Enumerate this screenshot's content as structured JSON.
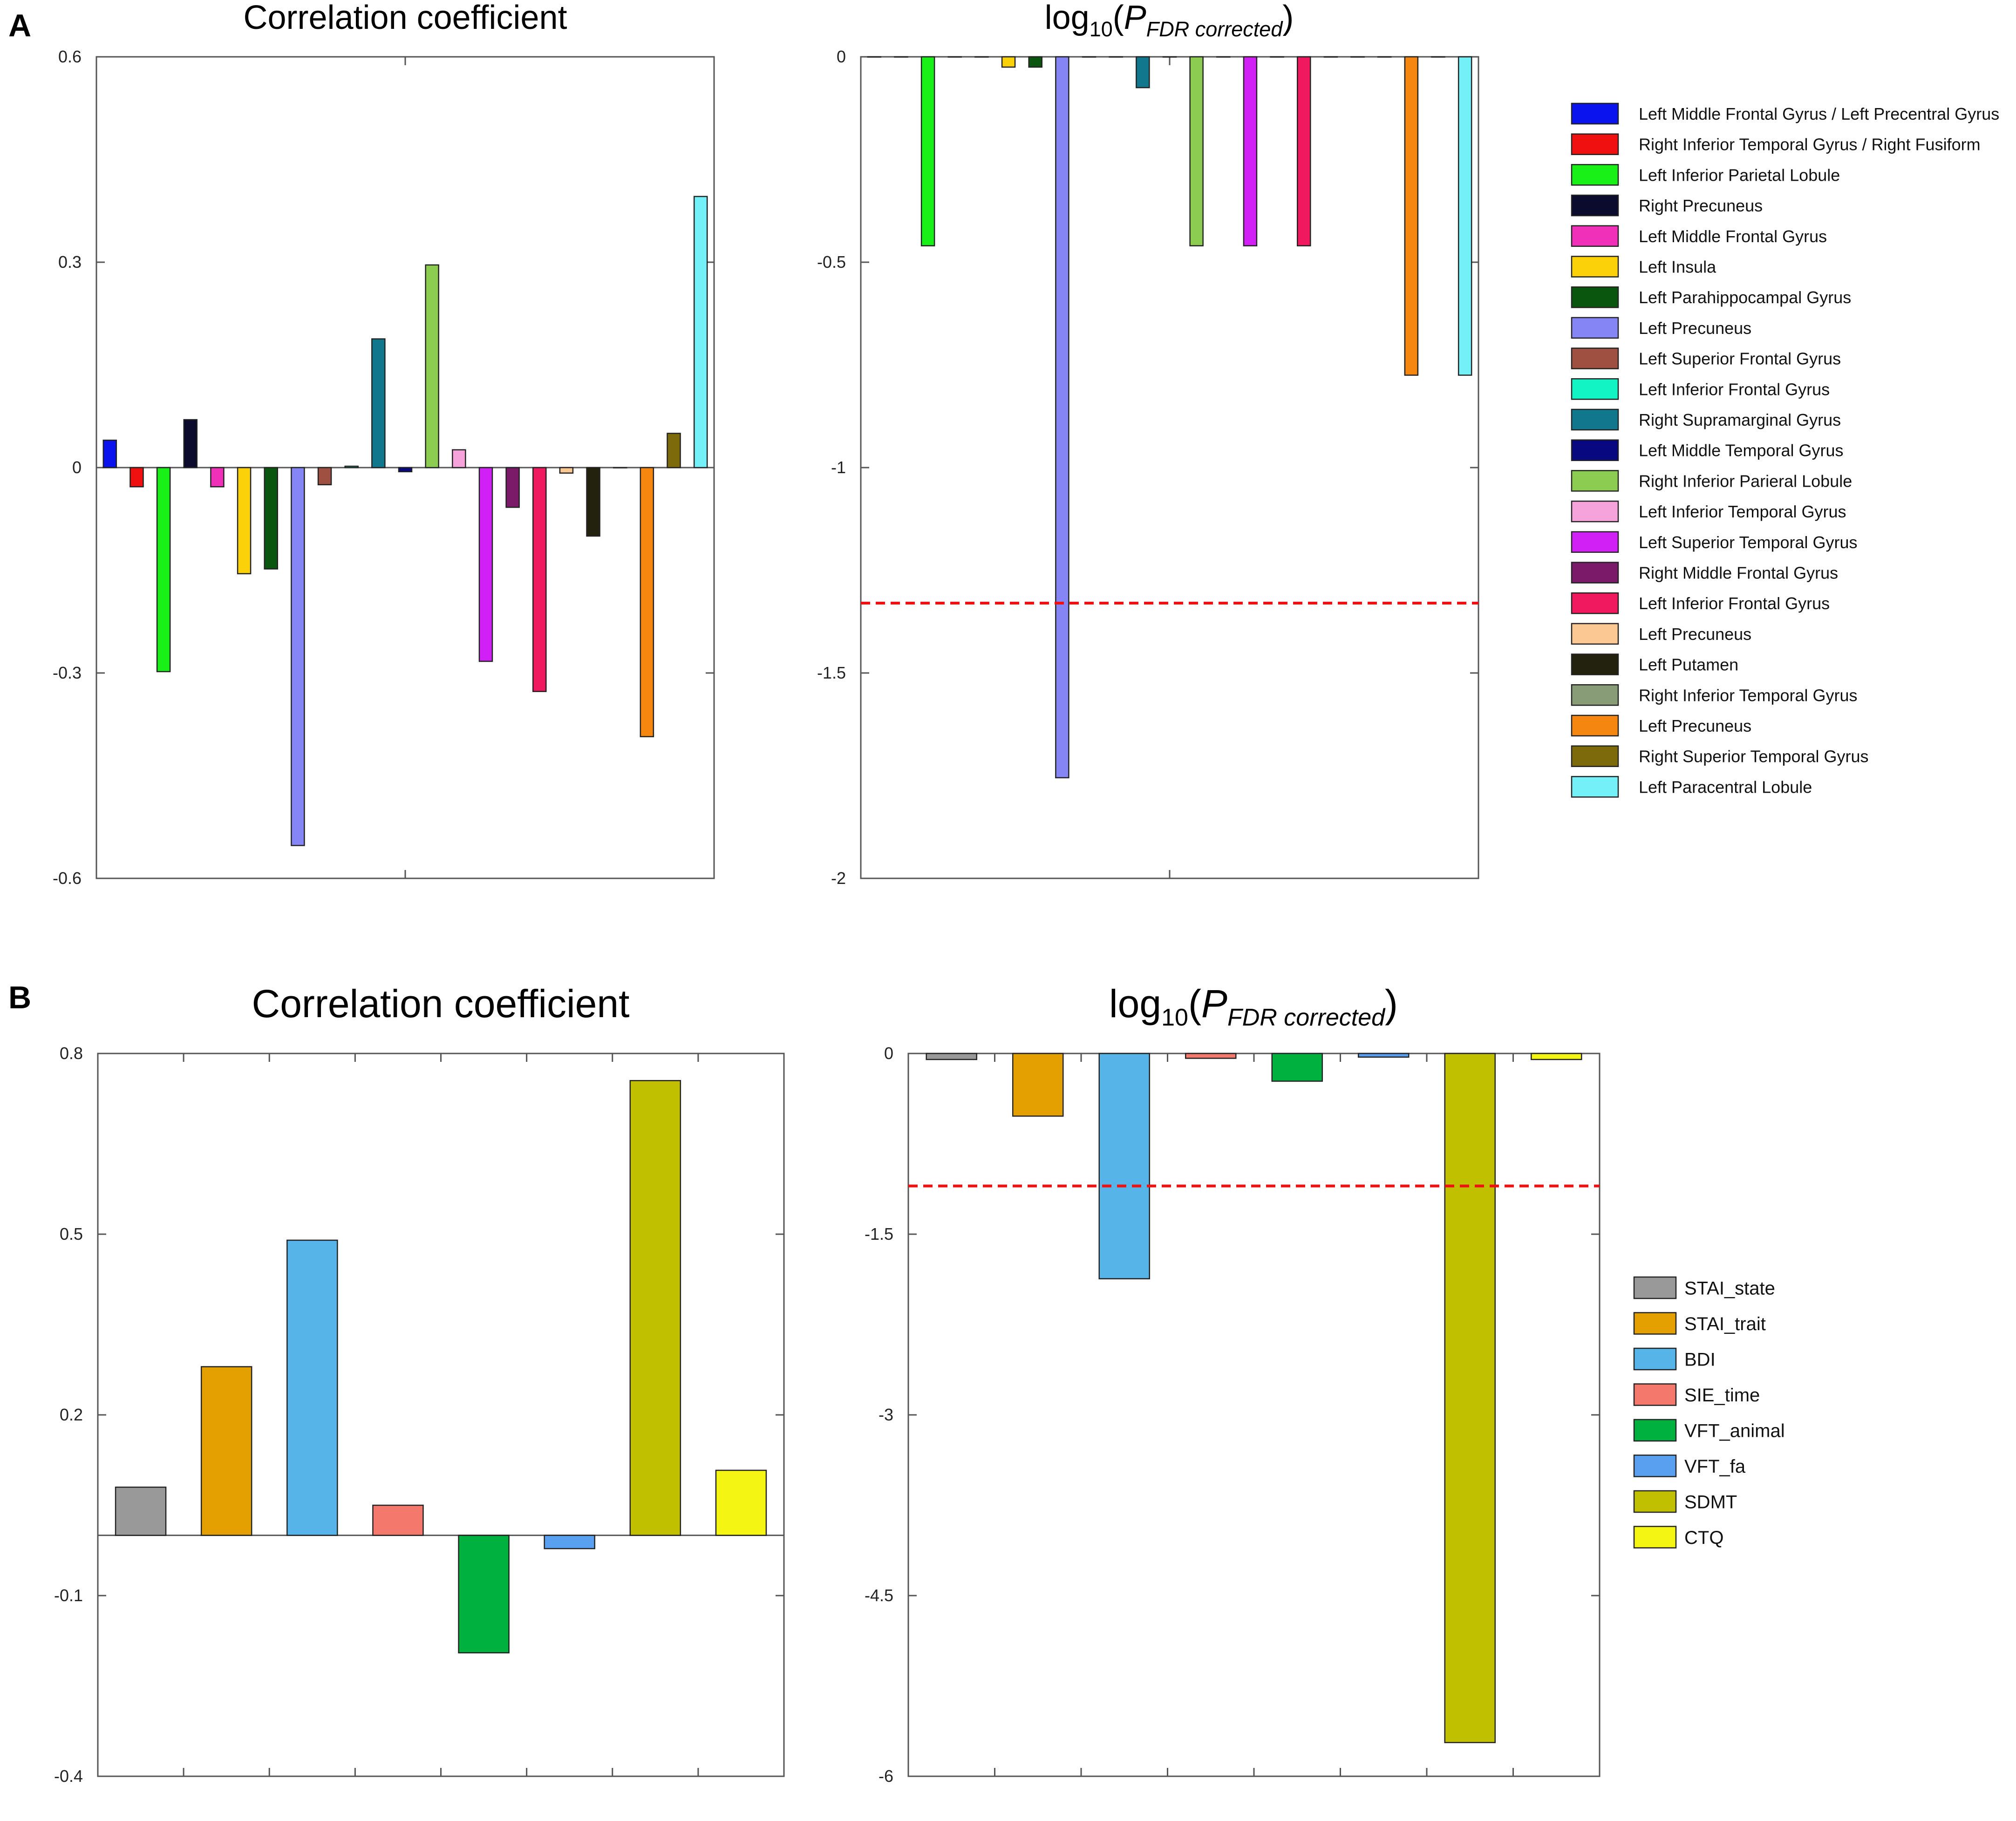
{
  "panels": {
    "a": {
      "label": "A"
    },
    "b": {
      "label": "B"
    }
  },
  "colors": {
    "axis": "#555555",
    "threshold": "#ee1111",
    "bar_stroke": "#222222"
  },
  "chart_data": [
    {
      "id": "a-corr",
      "panel": "A",
      "type": "bar",
      "title": "Correlation coefficient",
      "xlabel": "",
      "ylabel": "",
      "ylim": [
        -0.6,
        0.6
      ],
      "yticks": [
        -0.6,
        -0.3,
        0,
        0.3,
        0.6
      ],
      "ytick_labels": [
        "-0.6",
        "-0.3",
        "0",
        "0.3",
        "0.6"
      ],
      "grid": false,
      "baseline": 0,
      "categories": [
        "Left Middle Frontal Gyrus / Left Precentral Gyrus",
        "Right Inferior Temporal Gyrus / Right Fusiform",
        "Left Inferior Parietal Lobule",
        "Right Precuneus",
        "Left Middle Frontal Gyrus",
        "Left Insula",
        "Left Parahippocampal Gyrus",
        "Left Precuneus",
        "Left Superior Frontal Gyrus",
        "Left Inferior Frontal Gyrus",
        "Right Supramarginal Gyrus",
        "Left Middle Temporal Gyrus",
        "Right Inferior Parieral Lobule",
        "Left Inferior Temporal Gyrus",
        "Left Superior Temporal Gyrus",
        "Right Middle Frontal Gyrus",
        "Left Inferior Frontal Gyrus",
        "Left Precuneus",
        "Left Putamen",
        "Right Inferior Temporal Gyrus",
        "Left Precuneus",
        "Right Superior Temporal Gyrus",
        "Left Paracentral Lobule"
      ],
      "colors": [
        "#0a12ee",
        "#f01010",
        "#18f018",
        "#0b0b2e",
        "#f030b8",
        "#fbd10a",
        "#0b560e",
        "#8585f5",
        "#a05040",
        "#12f4c4",
        "#11778c",
        "#080880",
        "#8ccc50",
        "#f5a3da",
        "#d020f5",
        "#7a1a68",
        "#f0185e",
        "#fbc792",
        "#22220e",
        "#889c78",
        "#f5860f",
        "#7d6a0b",
        "#74f0f8"
      ],
      "values": [
        0.04,
        -0.028,
        -0.298,
        0.07,
        -0.028,
        -0.155,
        -0.148,
        -0.552,
        -0.025,
        0.002,
        0.188,
        -0.006,
        0.296,
        0.026,
        -0.283,
        -0.058,
        -0.327,
        -0.008,
        -0.1,
        0.0,
        -0.393,
        0.05,
        0.396
      ],
      "ticks_x": 1,
      "legend_position": "right"
    },
    {
      "id": "a-logp",
      "panel": "A",
      "type": "bar",
      "title_base": "log",
      "title_sub": "10",
      "title_p": "P",
      "title_psub": "FDR corrected",
      "xlabel": "",
      "ylabel": "",
      "ylim": [
        -2,
        0
      ],
      "yticks": [
        -2,
        -1.5,
        -1,
        -0.5,
        0
      ],
      "ytick_labels": [
        "-2",
        "-1.5",
        "-1",
        "-0.5",
        "0"
      ],
      "grid": false,
      "baseline": 0,
      "threshold": -1.33,
      "categories": [
        "Left Middle Frontal Gyrus / Left Precentral Gyrus",
        "Right Inferior Temporal Gyrus / Right Fusiform",
        "Left Inferior Parietal Lobule",
        "Right Precuneus",
        "Left Middle Frontal Gyrus",
        "Left Insula",
        "Left Parahippocampal Gyrus",
        "Left Precuneus",
        "Left Superior Frontal Gyrus",
        "Left Inferior Frontal Gyrus",
        "Right Supramarginal Gyrus",
        "Left Middle Temporal Gyrus",
        "Right Inferior Parieral Lobule",
        "Left Inferior Temporal Gyrus",
        "Left Superior Temporal Gyrus",
        "Right Middle Frontal Gyrus",
        "Left Inferior Frontal Gyrus",
        "Left Precuneus",
        "Left Putamen",
        "Right Inferior Temporal Gyrus",
        "Left Precuneus",
        "Right Superior Temporal Gyrus",
        "Left Paracentral Lobule"
      ],
      "colors": [
        "#0a12ee",
        "#f01010",
        "#18f018",
        "#0b0b2e",
        "#f030b8",
        "#fbd10a",
        "#0b560e",
        "#8585f5",
        "#a05040",
        "#12f4c4",
        "#11778c",
        "#080880",
        "#8ccc50",
        "#f5a3da",
        "#d020f5",
        "#7a1a68",
        "#f0185e",
        "#fbc792",
        "#22220e",
        "#889c78",
        "#f5860f",
        "#7d6a0b",
        "#74f0f8"
      ],
      "values": [
        0,
        0,
        -0.46,
        0,
        0,
        -0.025,
        -0.025,
        -1.755,
        0,
        0,
        -0.075,
        0,
        -0.46,
        0,
        -0.46,
        0,
        -0.46,
        0,
        0,
        0,
        -0.775,
        0,
        -0.775
      ],
      "ticks_x": 1,
      "legend_position": "right"
    },
    {
      "id": "b-corr",
      "panel": "B",
      "type": "bar",
      "title": "Correlation coefficient",
      "xlabel": "",
      "ylabel": "",
      "ylim": [
        -0.4,
        0.8
      ],
      "yticks": [
        -0.4,
        -0.1,
        0.2,
        0.5,
        0.8
      ],
      "ytick_labels": [
        "-0.4",
        "-0.1",
        "0.2",
        "0.5",
        "0.8"
      ],
      "grid": false,
      "baseline": 0,
      "categories": [
        "STAI_state",
        "STAI_trait",
        "BDI",
        "SIE_time",
        "VFT_animal",
        "VFT_fa",
        "SDMT",
        "CTQ"
      ],
      "colors": [
        "#999999",
        "#e3a000",
        "#56b4e9",
        "#f4786c",
        "#00b140",
        "#5aa0f0",
        "#c0c000",
        "#f5f514"
      ],
      "values": [
        0.08,
        0.28,
        0.49,
        0.05,
        -0.195,
        -0.022,
        0.755,
        0.108
      ],
      "ticks_x": 8,
      "legend_position": "right"
    },
    {
      "id": "b-logp",
      "panel": "B",
      "type": "bar",
      "title_base": "log",
      "title_sub": "10",
      "title_p": "P",
      "title_psub": "FDR corrected",
      "xlabel": "",
      "ylabel": "",
      "ylim": [
        -6,
        0
      ],
      "yticks": [
        -6,
        -4.5,
        -3,
        -1.5,
        0
      ],
      "ytick_labels": [
        "-6",
        "-4.5",
        "-3",
        "-1.5",
        "0"
      ],
      "grid": false,
      "baseline": 0,
      "threshold": -1.1,
      "categories": [
        "STAI_state",
        "STAI_trait",
        "BDI",
        "SIE_time",
        "VFT_animal",
        "VFT_fa",
        "SDMT",
        "CTQ"
      ],
      "colors": [
        "#999999",
        "#e3a000",
        "#56b4e9",
        "#f4786c",
        "#00b140",
        "#5aa0f0",
        "#c0c000",
        "#f5f514"
      ],
      "values": [
        -0.05,
        -0.52,
        -1.87,
        -0.04,
        -0.23,
        -0.03,
        -5.72,
        -0.05
      ],
      "ticks_x": 8,
      "legend_position": "right"
    }
  ],
  "legends": {
    "a": [
      "Left Middle Frontal Gyrus / Left Precentral Gyrus",
      "Right Inferior Temporal Gyrus / Right Fusiform",
      "Left Inferior Parietal Lobule",
      "Right Precuneus",
      "Left Middle Frontal Gyrus",
      "Left Insula",
      "Left Parahippocampal Gyrus",
      "Left Precuneus",
      "Left Superior Frontal Gyrus",
      "Left Inferior Frontal Gyrus",
      "Right Supramarginal Gyrus",
      "Left Middle Temporal Gyrus",
      "Right Inferior Parieral Lobule",
      "Left Inferior Temporal Gyrus",
      "Left Superior Temporal Gyrus",
      "Right Middle Frontal Gyrus",
      "Left Inferior Frontal Gyrus",
      "Left Precuneus",
      "Left Putamen",
      "Right Inferior Temporal Gyrus",
      "Left Precuneus",
      "Right Superior Temporal Gyrus",
      "Left Paracentral Lobule"
    ],
    "b": [
      "STAI_state",
      "STAI_trait",
      "BDI",
      "SIE_time",
      "VFT_animal",
      "VFT_fa",
      "SDMT",
      "CTQ"
    ]
  }
}
